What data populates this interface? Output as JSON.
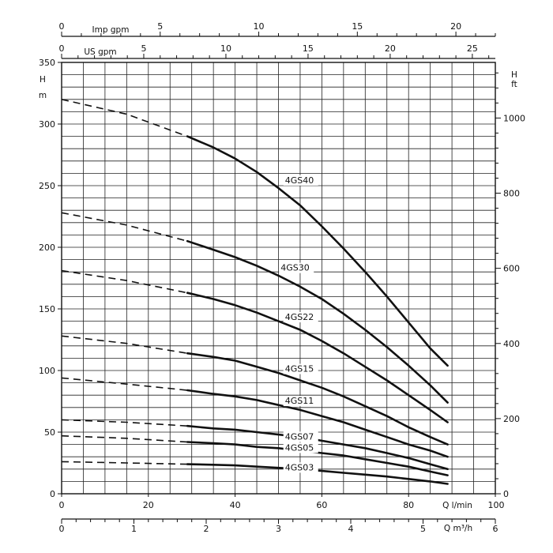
{
  "chart_data": {
    "type": "line",
    "title": "",
    "x": {
      "label": "Q l/min",
      "ticks": [
        "0",
        "20",
        "40",
        "60",
        "80",
        "100"
      ],
      "range": [
        0,
        100
      ]
    },
    "y": {
      "label": "H m",
      "ticks": [
        "0",
        "50",
        "100",
        "150",
        "200",
        "250",
        "300",
        "350"
      ],
      "range": [
        0,
        350
      ]
    },
    "y_right": {
      "label": "H ft",
      "ticks": [
        "0",
        "200",
        "400",
        "600",
        "800",
        "1000"
      ],
      "range_ft": [
        0,
        1148
      ]
    },
    "x_top_imp": {
      "label": "Imp gpm",
      "ticks": [
        "0",
        "5",
        "10",
        "15",
        "20"
      ],
      "max": 22
    },
    "x_top_us": {
      "label": "US gpm",
      "ticks": [
        "0",
        "5",
        "10",
        "15",
        "20",
        "25"
      ],
      "max": 26.4
    },
    "x_bottom_m3h": {
      "label": "Q m³/h",
      "ticks": [
        "0",
        "1",
        "2",
        "3",
        "4",
        "5",
        "6"
      ],
      "max": 6
    },
    "grid": true,
    "series": [
      {
        "name": "4GS40",
        "x": [
          0,
          15,
          29,
          35,
          40,
          45,
          50,
          55,
          60,
          65,
          70,
          75,
          80,
          85,
          89
        ],
        "y": [
          320,
          308,
          290,
          281,
          272,
          261,
          248,
          234,
          217,
          199,
          180,
          160,
          139,
          118,
          104
        ]
      },
      {
        "name": "4GS30",
        "x": [
          0,
          15,
          29,
          35,
          40,
          45,
          50,
          55,
          60,
          65,
          70,
          75,
          80,
          85,
          89
        ],
        "y": [
          228,
          218,
          205,
          198,
          192,
          185,
          177,
          168,
          158,
          146,
          133,
          119,
          104,
          88,
          74
        ]
      },
      {
        "name": "4GS22",
        "x": [
          0,
          15,
          29,
          35,
          40,
          45,
          50,
          55,
          60,
          65,
          70,
          75,
          80,
          85,
          89
        ],
        "y": [
          181,
          173,
          163,
          158,
          153,
          147,
          140,
          133,
          124,
          114,
          103,
          92,
          80,
          68,
          58
        ]
      },
      {
        "name": "4GS15",
        "x": [
          0,
          15,
          29,
          35,
          40,
          45,
          50,
          55,
          60,
          65,
          70,
          75,
          80,
          85,
          89
        ],
        "y": [
          128,
          122,
          114,
          111,
          108,
          103,
          98,
          92,
          86,
          79,
          71,
          63,
          54,
          46,
          40
        ]
      },
      {
        "name": "4GS11",
        "x": [
          0,
          15,
          29,
          35,
          40,
          45,
          50,
          55,
          60,
          65,
          70,
          75,
          80,
          85,
          89
        ],
        "y": [
          94,
          89,
          84,
          81,
          79,
          76,
          72,
          68,
          63,
          58,
          52,
          46,
          40,
          35,
          30
        ]
      },
      {
        "name": "4GS07",
        "x": [
          0,
          15,
          29,
          35,
          40,
          45,
          50,
          55,
          60,
          65,
          70,
          75,
          80,
          85,
          89
        ],
        "y": [
          60,
          58,
          55,
          53,
          52,
          50,
          48,
          46,
          43,
          40,
          37,
          33,
          29,
          24,
          20
        ]
      },
      {
        "name": "4GS05",
        "x": [
          0,
          15,
          29,
          35,
          40,
          45,
          50,
          55,
          60,
          65,
          70,
          75,
          80,
          85,
          89
        ],
        "y": [
          47,
          45,
          42,
          41,
          40,
          38,
          37,
          35,
          33,
          31,
          28,
          25,
          22,
          18,
          15
        ]
      },
      {
        "name": "4GS03",
        "x": [
          0,
          15,
          29,
          35,
          40,
          45,
          50,
          55,
          60,
          65,
          70,
          75,
          80,
          85,
          89
        ],
        "y": [
          26,
          25,
          24,
          23.5,
          23,
          22,
          21,
          20,
          18.5,
          17,
          15.5,
          14,
          12,
          10,
          8
        ]
      }
    ],
    "curve_labels": [
      {
        "series": "4GS40",
        "text": "4GS40",
        "x": 51.5,
        "y": 252
      },
      {
        "series": "4GS30",
        "text": "4GS30",
        "x": 50.5,
        "y": 181
      },
      {
        "series": "4GS22",
        "text": "4GS22",
        "x": 51.5,
        "y": 141
      },
      {
        "series": "4GS15",
        "text": "4GS15",
        "x": 51.5,
        "y": 99
      },
      {
        "series": "4GS11",
        "text": "4GS11",
        "x": 51.5,
        "y": 73
      },
      {
        "series": "4GS07",
        "text": "4GS07",
        "x": 51.5,
        "y": 44
      },
      {
        "series": "4GS05",
        "text": "4GS05",
        "x": 51.5,
        "y": 35
      },
      {
        "series": "4GS03",
        "text": "4GS03",
        "x": 51.5,
        "y": 19
      }
    ],
    "dashed_until_x": 29
  }
}
